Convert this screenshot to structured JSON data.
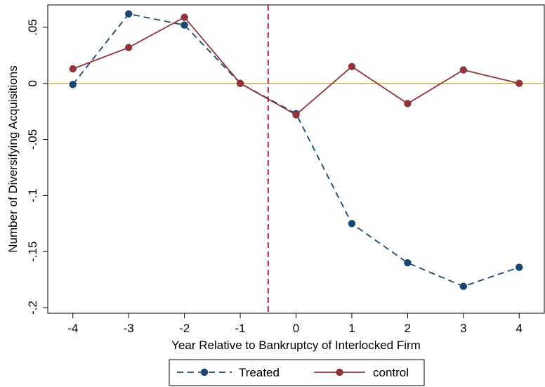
{
  "chart_data": {
    "type": "line",
    "title": "",
    "xlabel": "Year Relative to Bankruptcy of Interlocked Firm",
    "ylabel": "Number of Diversifying Acquisitions",
    "x": [
      -4,
      -3,
      -2,
      -1,
      0,
      1,
      2,
      3,
      4
    ],
    "x_tick_labels": [
      "-4",
      "-3",
      "-2",
      "-1",
      "0",
      "1",
      "2",
      "3",
      "4"
    ],
    "y_ticks": [
      0.05,
      0,
      -0.05,
      -0.1,
      -0.15,
      -0.2
    ],
    "y_tick_labels": [
      ".05",
      "0",
      "-.05",
      "-.1",
      "-.15",
      "-.2"
    ],
    "xlim": [
      -4.45,
      4.45
    ],
    "ylim": [
      -0.205,
      0.07
    ],
    "grid": false,
    "reference_lines": {
      "horizontal_y": 0,
      "vertical_x": -0.5
    },
    "legend_position": "bottom-center",
    "series": [
      {
        "name": "Treated",
        "values": [
          -0.001,
          0.062,
          0.052,
          0.0,
          -0.027,
          -0.125,
          -0.16,
          -0.181,
          -0.164
        ],
        "color": "#1a476f",
        "line_style": "dashed",
        "marker": "circle"
      },
      {
        "name": "control",
        "values": [
          0.013,
          0.032,
          0.059,
          0.0,
          -0.028,
          0.015,
          -0.018,
          0.012,
          0.0
        ],
        "color": "#90353b",
        "line_style": "solid",
        "marker": "circle"
      }
    ],
    "colors": {
      "zero_line": "#cbb26b",
      "event_line": "#c10534"
    }
  }
}
